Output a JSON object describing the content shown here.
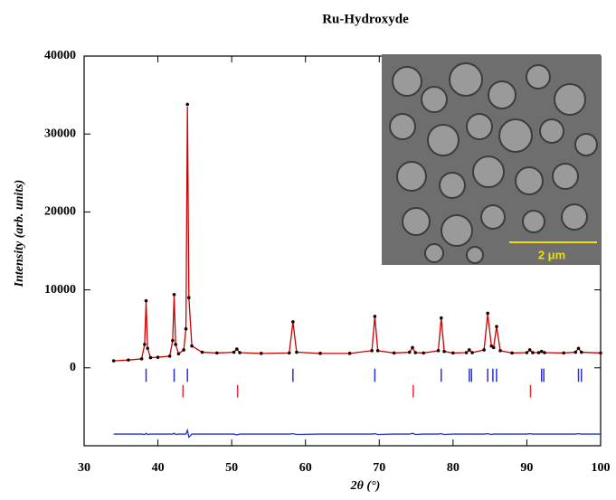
{
  "chart_data": {
    "type": "line",
    "title": "Ru-Hydroxyde",
    "xlabel": "2θ (°)",
    "ylabel": "Intensity (arb. units)",
    "xlim": [
      30,
      100
    ],
    "xticks": [
      30,
      40,
      50,
      60,
      70,
      80,
      90,
      100
    ],
    "ylim": [
      -10000,
      40000
    ],
    "yticks": [
      0,
      10000,
      20000,
      30000,
      40000
    ],
    "grid": false,
    "inset_scale_label": "2 μm",
    "x": [
      34,
      36,
      37.8,
      38.2,
      38.4,
      38.6,
      39,
      40,
      41.6,
      42.0,
      42.2,
      42.4,
      42.8,
      43.5,
      43.8,
      44.0,
      44.2,
      44.6,
      46,
      48,
      50.3,
      50.7,
      51.1,
      54,
      57.8,
      58.3,
      58.8,
      62,
      66,
      69.0,
      69.4,
      69.8,
      72,
      74.1,
      74.5,
      74.9,
      76,
      78.0,
      78.4,
      78.8,
      80,
      81.8,
      82.2,
      82.6,
      84.2,
      84.7,
      85.2,
      85.5,
      85.9,
      86.4,
      88,
      90.0,
      90.4,
      90.8,
      91.6,
      92.0,
      92.4,
      95,
      96.6,
      97.0,
      97.4,
      100
    ],
    "series": [
      {
        "style": "points",
        "color": "#1a0000",
        "values": [
          900,
          1000,
          1150,
          3000,
          8600,
          2500,
          1300,
          1350,
          1500,
          3500,
          9400,
          3000,
          1800,
          2300,
          5000,
          33800,
          9000,
          2800,
          2000,
          1900,
          2000,
          2400,
          1950,
          1850,
          1900,
          5900,
          2000,
          1850,
          1850,
          2200,
          6600,
          2200,
          1900,
          2000,
          2600,
          1950,
          1900,
          2200,
          6400,
          2100,
          1900,
          1950,
          2300,
          1950,
          2300,
          7000,
          2800,
          2600,
          5300,
          2200,
          1900,
          1950,
          2300,
          1950,
          1950,
          2100,
          1950,
          1900,
          2000,
          2500,
          2000,
          1900
        ]
      },
      {
        "style": "line",
        "color": "#cc0000",
        "values": [
          900,
          1000,
          1150,
          3000,
          8500,
          2500,
          1300,
          1350,
          1500,
          3500,
          9300,
          3000,
          1800,
          2300,
          5000,
          33500,
          9000,
          2800,
          2000,
          1900,
          2000,
          2400,
          1950,
          1850,
          1900,
          5900,
          2000,
          1850,
          1850,
          2200,
          6600,
          2200,
          1900,
          2000,
          2600,
          1950,
          1900,
          2200,
          6400,
          2100,
          1900,
          1950,
          2300,
          1950,
          2300,
          6900,
          2800,
          2600,
          5300,
          2200,
          1900,
          1950,
          2300,
          1950,
          1950,
          2100,
          1950,
          1900,
          2000,
          2500,
          2000,
          1900
        ]
      },
      {
        "style": "line",
        "color": "#2233cc",
        "values": [
          -8500,
          -8500,
          -8500,
          -8550,
          -8400,
          -8550,
          -8500,
          -8500,
          -8500,
          -8500,
          -8400,
          -8550,
          -8500,
          -8500,
          -8500,
          -8000,
          -8900,
          -8500,
          -8500,
          -8500,
          -8500,
          -8600,
          -8500,
          -8500,
          -8500,
          -8450,
          -8550,
          -8500,
          -8500,
          -8500,
          -8450,
          -8550,
          -8500,
          -8500,
          -8400,
          -8550,
          -8500,
          -8500,
          -8450,
          -8550,
          -8500,
          -8500,
          -8500,
          -8500,
          -8500,
          -8450,
          -8550,
          -8500,
          -8500,
          -8500,
          -8500,
          -8500,
          -8450,
          -8500,
          -8500,
          -8500,
          -8500,
          -8500,
          -8500,
          -8450,
          -8500,
          -8500
        ]
      }
    ],
    "bragg": [
      {
        "color": "#2233cc",
        "range": [
          -100,
          -1800
        ],
        "x": [
          38.4,
          42.2,
          44.0,
          58.3,
          69.4,
          78.4,
          82.2,
          82.5,
          84.7,
          85.4,
          85.9,
          92.0,
          92.3,
          97.0,
          97.4
        ]
      },
      {
        "color": "#dd3333",
        "range": [
          -2200,
          -3800
        ],
        "x": [
          43.4,
          50.8,
          74.6,
          90.5
        ]
      }
    ]
  }
}
